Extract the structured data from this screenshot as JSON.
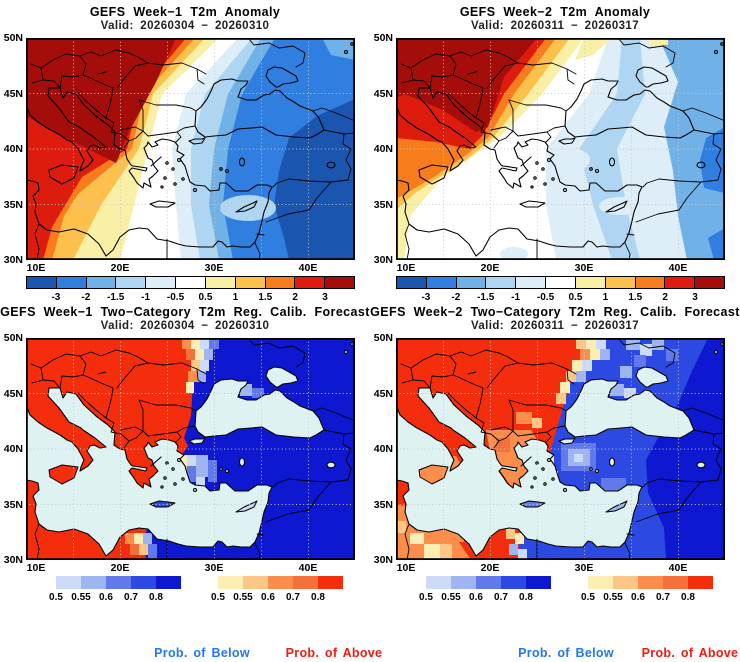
{
  "panels": [
    {
      "id": "week1-anomaly",
      "title": "GEFS Week−1 T2m Anomaly",
      "valid": "Valid: 20260304 − 20260310"
    },
    {
      "id": "week2-anomaly",
      "title": "GEFS Week−2 T2m Anomaly",
      "valid": "Valid: 20260311 − 20260317"
    },
    {
      "id": "week1-prob",
      "title": "GEFS Week−1 Two−Category T2m Reg. Calib. Forecast",
      "valid": "Valid: 20260304 − 20260310"
    },
    {
      "id": "week2-prob",
      "title": "GEFS Week−2 Two−Category T2m Reg. Calib. Forecast",
      "valid": "Valid: 20260311 − 20260317"
    }
  ],
  "axes": {
    "lat_labels": [
      "50N",
      "45N",
      "40N",
      "35N",
      "30N"
    ],
    "lon_labels": [
      "10E",
      "20E",
      "30E",
      "40E"
    ]
  },
  "anomaly_colorbar": {
    "units": "T2m anomaly",
    "colors": [
      "#1a55b0",
      "#2f7ee0",
      "#70b2e8",
      "#aed6f2",
      "#ddeef8",
      "#ffffff",
      "#f9f0a6",
      "#fdc04c",
      "#f67c1c",
      "#dd1c0e",
      "#a50d0a"
    ],
    "tick_labels": [
      "-3",
      "-2",
      "-1.5",
      "-1",
      "-0.5",
      "0.5",
      "1",
      "1.5",
      "2",
      "3"
    ]
  },
  "prob_below_colorbar": {
    "colors": [
      "#ccdbf8",
      "#9fb5f2",
      "#6279ec",
      "#2c49e2",
      "#0d18d0"
    ],
    "tick_labels": [
      "0.5",
      "0.55",
      "0.6",
      "0.7",
      "0.8"
    ]
  },
  "prob_above_colorbar": {
    "colors": [
      "#fdedb2",
      "#fcc687",
      "#fc8d4b",
      "#f4703a",
      "#f42e0d"
    ],
    "tick_labels": [
      "0.5",
      "0.55",
      "0.6",
      "0.7",
      "0.8"
    ]
  },
  "map_colors": {
    "sea_mask": "#ddf2f1",
    "prob_above_max": "#f42e0d",
    "prob_below_max": "#0d18d0"
  },
  "footer": {
    "labels": [
      {
        "text": "Prob. of Below",
        "color": "#2277f2"
      },
      {
        "text": "Prob. of Above",
        "color": "#f21b0d"
      },
      {
        "text": "Prob. of Below",
        "color": "#2277f2"
      },
      {
        "text": "Prob. of Above",
        "color": "#f21b0d"
      }
    ]
  }
}
